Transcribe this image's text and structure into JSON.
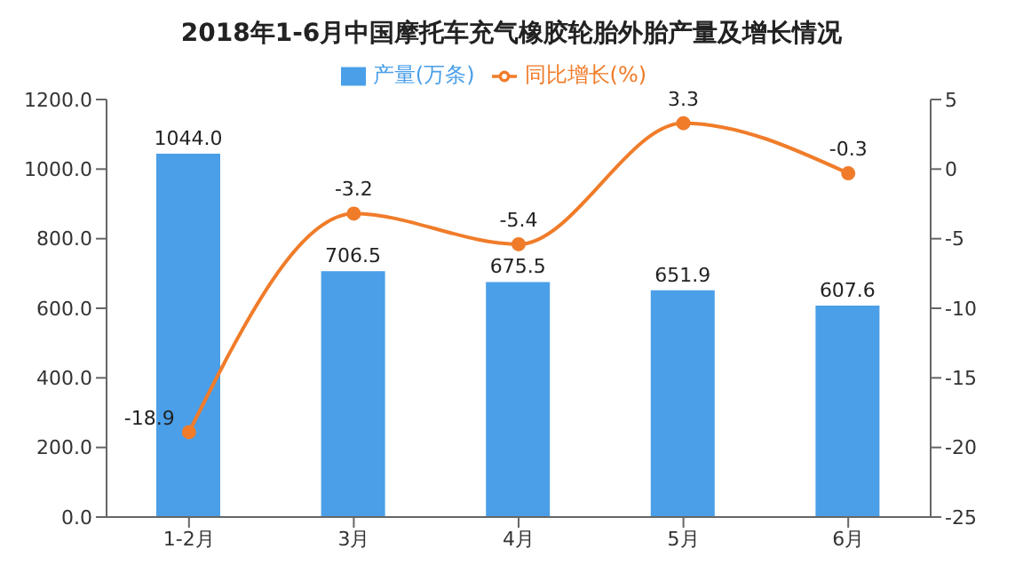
{
  "chart_data": {
    "type": "bar",
    "title": "2018年1-6月中国摩托车充气橡胶轮胎外胎产量及增长情况",
    "categories": [
      "1-2月",
      "3月",
      "4月",
      "5月",
      "6月"
    ],
    "series": [
      {
        "name": "产量(万条)",
        "color": "#4a9fe8",
        "values": [
          1044.0,
          706.5,
          675.5,
          651.9,
          607.6
        ],
        "value_labels": [
          "1044.0",
          "706.5",
          "675.5",
          "651.9",
          "607.6"
        ]
      },
      {
        "name": "同比增长(%)",
        "type": "line",
        "axis": "y2",
        "color": "#f07c2a",
        "values": [
          -18.9,
          -3.2,
          -5.4,
          3.3,
          -0.3
        ],
        "value_labels": [
          "-18.9",
          "-3.2",
          "-5.4",
          "3.3",
          "-0.3"
        ]
      }
    ],
    "ylim": [
      0,
      1200
    ],
    "yticks": [
      {
        "value": 0,
        "label": "0.0"
      },
      {
        "value": 200,
        "label": "200.0"
      },
      {
        "value": 400,
        "label": "400.0"
      },
      {
        "value": 600,
        "label": "600.0"
      },
      {
        "value": 800,
        "label": "800.0"
      },
      {
        "value": 1000,
        "label": "1000.0"
      },
      {
        "value": 1200,
        "label": "1200.0"
      }
    ],
    "y2lim": [
      -25,
      5
    ],
    "y2ticks": [
      -25,
      -20,
      -15,
      -10,
      -5,
      0,
      5
    ],
    "legend": "top",
    "marker": "circle",
    "grid": false
  }
}
